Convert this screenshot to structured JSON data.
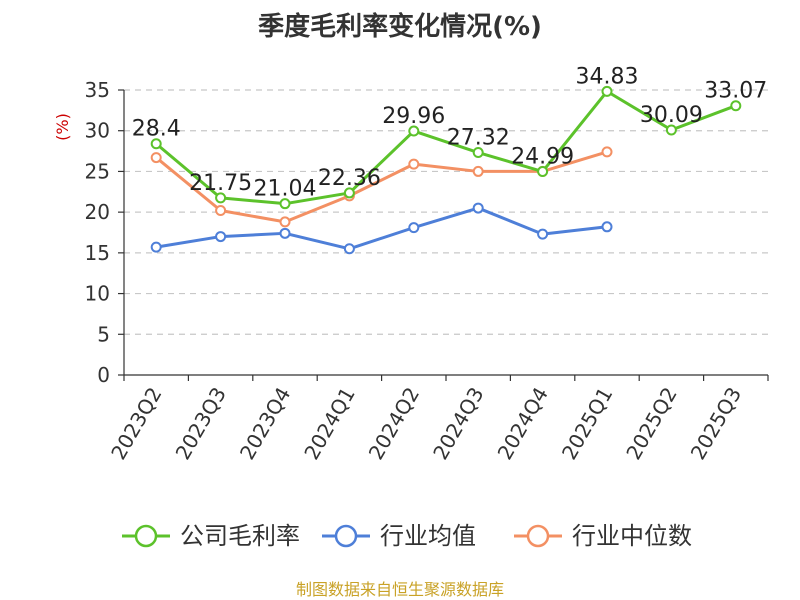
{
  "chart_data": {
    "type": "line",
    "title": "季度毛利率变化情况(%)",
    "ylabel": "(%)",
    "xlabel": "",
    "categories": [
      "2023Q2",
      "2023Q3",
      "2023Q4",
      "2024Q1",
      "2024Q2",
      "2024Q3",
      "2024Q4",
      "2025Q1",
      "2025Q2",
      "2025Q3"
    ],
    "ylim": [
      0,
      35
    ],
    "yticks": [
      0,
      5,
      10,
      15,
      20,
      25,
      30,
      35
    ],
    "grid": true,
    "legend_position": "bottom",
    "series": [
      {
        "name": "公司毛利率",
        "color": "#5CC22B",
        "values": [
          28.4,
          21.75,
          21.04,
          22.36,
          29.96,
          27.32,
          24.99,
          34.83,
          30.09,
          33.07
        ],
        "labels": [
          "28.4",
          "21.75",
          "21.04",
          "22.36",
          "29.96",
          "27.32",
          "24.99",
          "34.83",
          "30.09",
          "33.07"
        ]
      },
      {
        "name": "行业均值",
        "color": "#4E7FD8",
        "values": [
          15.7,
          17.0,
          17.4,
          15.5,
          18.1,
          20.5,
          17.3,
          18.2,
          null,
          null
        ]
      },
      {
        "name": "行业中位数",
        "color": "#F39063",
        "values": [
          26.7,
          20.2,
          18.8,
          22.0,
          25.9,
          25.0,
          25.0,
          27.4,
          null,
          null
        ]
      }
    ],
    "source": "制图数据来自恒生聚源数据库",
    "source_color": "#C9A227",
    "ylabel_color": "#CC0000"
  }
}
